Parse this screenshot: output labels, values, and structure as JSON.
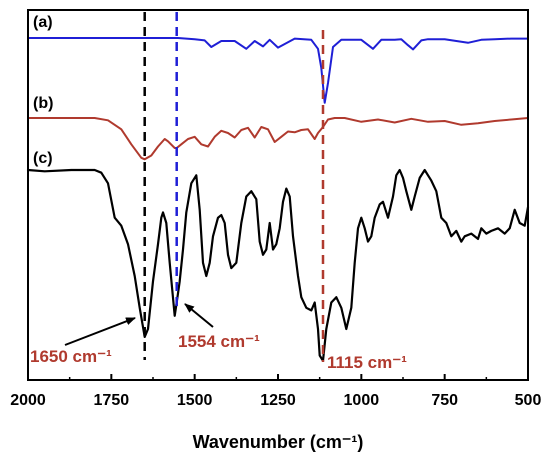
{
  "chart_data": {
    "type": "line",
    "xlabel": "Wavenumber (cm⁻¹)",
    "x_ticks": [
      2000,
      1750,
      1500,
      1250,
      1000,
      750,
      500
    ],
    "xlim": [
      2000,
      500
    ],
    "x_reversed": true,
    "grid": false,
    "panel_labels": [
      "(a)",
      "(b)",
      "(c)"
    ],
    "reference_lines": [
      {
        "x": 1650,
        "color": "#000000",
        "style": "dashed"
      },
      {
        "x": 1554,
        "color": "#1f1fd6",
        "style": "dashed"
      },
      {
        "x": 1115,
        "color": "#b03a2e",
        "style": "dashed"
      }
    ],
    "annotations": [
      {
        "text": "1650 cm⁻¹",
        "x": 1650
      },
      {
        "text": "1554 cm⁻¹",
        "x": 1554
      },
      {
        "text": "1115 cm⁻¹",
        "x": 1115
      }
    ],
    "series": [
      {
        "color": "#1f1fd6",
        "x": [
          2000,
          1550,
          1500,
          1470,
          1450,
          1420,
          1380,
          1345,
          1320,
          1295,
          1275,
          1250,
          1200,
          1150,
          1130,
          1120,
          1110,
          1100,
          1085,
          1060,
          1000,
          965,
          940,
          900,
          880,
          860,
          845,
          820,
          800,
          750,
          680,
          640,
          600,
          550,
          500
        ],
        "y": [
          0.0,
          0.0,
          -0.2,
          -0.4,
          -1.5,
          -0.5,
          -0.5,
          -1.8,
          -0.5,
          -1.4,
          -0.3,
          -1.6,
          -0.1,
          -0.3,
          -1.8,
          -5.0,
          -10.8,
          -7.5,
          -1.5,
          -0.3,
          -0.3,
          -1.8,
          -0.3,
          -0.3,
          -0.2,
          -1.2,
          -1.9,
          -0.4,
          -0.2,
          -0.2,
          -0.8,
          -0.3,
          -0.2,
          -0.1,
          -0.1
        ]
      },
      {
        "color": "#b03a2e",
        "x": [
          2000,
          1800,
          1760,
          1720,
          1690,
          1660,
          1650,
          1630,
          1610,
          1590,
          1580,
          1560,
          1554,
          1540,
          1520,
          1500,
          1480,
          1460,
          1440,
          1420,
          1400,
          1380,
          1360,
          1340,
          1320,
          1300,
          1280,
          1260,
          1240,
          1220,
          1200,
          1180,
          1160,
          1140,
          1130,
          1115,
          1100,
          1080,
          1050,
          1000,
          950,
          900,
          850,
          800,
          750,
          700,
          650,
          600,
          550,
          500
        ],
        "y": [
          0.0,
          0.0,
          -0.3,
          -1.5,
          -3.5,
          -5.3,
          -5.5,
          -5.0,
          -3.8,
          -2.8,
          -3.1,
          -4.0,
          -4.0,
          -3.5,
          -2.8,
          -2.5,
          -3.5,
          -3.8,
          -2.5,
          -1.7,
          -2.0,
          -2.6,
          -1.6,
          -1.3,
          -2.6,
          -1.2,
          -1.5,
          -3.2,
          -2.5,
          -1.8,
          -1.9,
          -1.6,
          -1.5,
          -2.8,
          -2.0,
          -1.2,
          -0.2,
          0.0,
          0.0,
          -0.5,
          -0.2,
          -0.6,
          -0.1,
          -0.5,
          -0.4,
          -0.9,
          -0.7,
          -0.4,
          -0.2,
          0.0
        ]
      },
      {
        "color": "#000000",
        "x": [
          2000,
          1950,
          1870,
          1800,
          1780,
          1760,
          1740,
          1720,
          1700,
          1680,
          1665,
          1650,
          1640,
          1625,
          1610,
          1600,
          1595,
          1585,
          1575,
          1560,
          1554,
          1545,
          1535,
          1525,
          1510,
          1495,
          1485,
          1475,
          1465,
          1455,
          1445,
          1430,
          1420,
          1410,
          1400,
          1390,
          1375,
          1360,
          1345,
          1330,
          1315,
          1305,
          1295,
          1285,
          1275,
          1265,
          1255,
          1245,
          1235,
          1225,
          1215,
          1205,
          1190,
          1180,
          1165,
          1150,
          1140,
          1130,
          1125,
          1115,
          1105,
          1090,
          1075,
          1060,
          1045,
          1030,
          1020,
          1010,
          1000,
          990,
          980,
          970,
          960,
          945,
          935,
          920,
          905,
          895,
          885,
          875,
          865,
          850,
          840,
          825,
          810,
          800,
          790,
          775,
          760,
          745,
          730,
          715,
          700,
          690,
          670,
          650,
          640,
          625,
          610,
          590,
          570,
          555,
          540,
          525,
          510,
          500
        ],
        "y": [
          0.0,
          -0.5,
          0.0,
          0.0,
          -1.0,
          -5.0,
          -18.0,
          -21.0,
          -28.0,
          -40.0,
          -52.0,
          -63.0,
          -60.0,
          -42.0,
          -28.0,
          -18.0,
          -16.0,
          -20.0,
          -35.0,
          -55.0,
          -50.0,
          -42.0,
          -30.0,
          -16.0,
          -5.0,
          -2.0,
          -15.0,
          -35.0,
          -40.0,
          -35.0,
          -25.0,
          -18.0,
          -17.0,
          -20.0,
          -32.0,
          -37.0,
          -35.0,
          -20.0,
          -10.0,
          -8.0,
          -11.0,
          -27.0,
          -32.0,
          -30.0,
          -20.0,
          -30.0,
          -28.0,
          -22.0,
          -12.0,
          -7.0,
          -10.0,
          -25.0,
          -40.0,
          -48.0,
          -52.0,
          -53.0,
          -50.0,
          -60.0,
          -70.0,
          -72.0,
          -60.0,
          -50.0,
          -48.0,
          -52.0,
          -60.0,
          -52.0,
          -35.0,
          -22.0,
          -18.0,
          -22.0,
          -27.0,
          -25.0,
          -18.0,
          -13.0,
          -12.0,
          -18.0,
          -10.0,
          -2.0,
          0.0,
          -3.0,
          -8.0,
          -15.0,
          -10.0,
          -3.0,
          0.0,
          -2.0,
          -4.0,
          -8.0,
          -18.0,
          -20.0,
          -25.0,
          -23.0,
          -27.0,
          -25.0,
          -24.0,
          -26.0,
          -22.0,
          -24.0,
          -23.0,
          -22.0,
          -24.0,
          -22.0,
          -15.0,
          -20.0,
          -21.0,
          -14.0
        ]
      }
    ]
  }
}
